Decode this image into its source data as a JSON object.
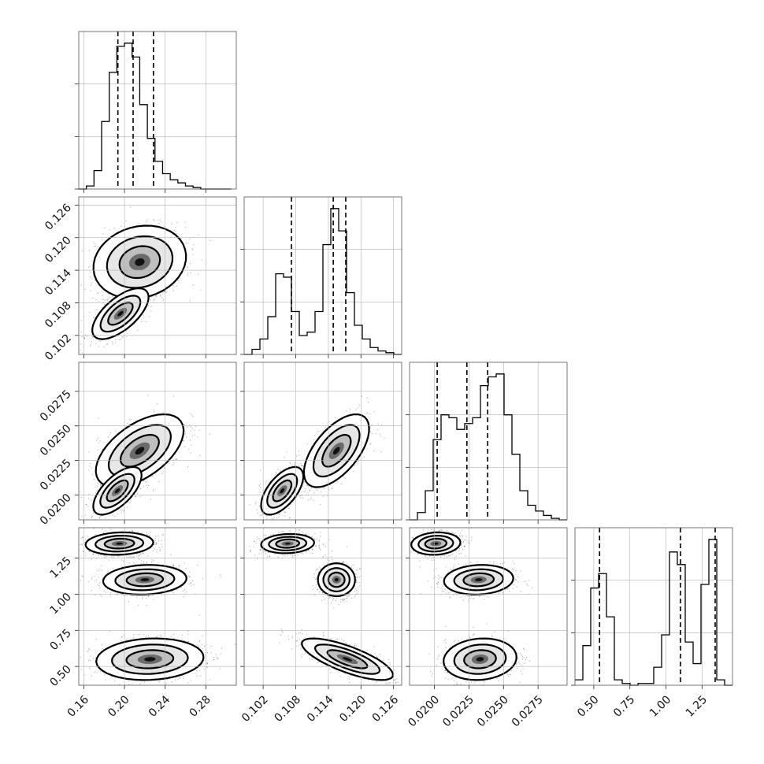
{
  "chart_data": {
    "type": "corner",
    "params": [
      {
        "key": "p0",
        "range": [
          0.155,
          0.31
        ],
        "ticks": [
          "0.16",
          "0.20",
          "0.24",
          "0.28"
        ],
        "quantiles": [
          0.1935,
          0.2085,
          0.2285
        ],
        "hist": {
          "edges_start": 0.155,
          "bin_width": 0.0075,
          "counts": [
            0,
            2,
            12,
            44,
            76,
            93,
            95,
            86,
            55,
            33,
            18,
            10,
            6,
            4,
            2,
            1,
            0,
            0,
            0,
            0
          ]
        }
      },
      {
        "key": "p1",
        "range": [
          0.0985,
          0.1275
        ],
        "ticks": [
          "0.102",
          "0.108",
          "0.114",
          "0.120",
          "0.126"
        ],
        "quantiles": [
          0.1072,
          0.1149,
          0.1172
        ],
        "hist": {
          "edges_start": 0.0985,
          "bin_width": 0.00145,
          "counts": [
            0,
            3,
            9,
            22,
            47,
            45,
            25,
            11,
            13,
            25,
            64,
            85,
            72,
            36,
            17,
            9,
            4,
            2,
            1,
            0
          ]
        }
      },
      {
        "key": "p2",
        "range": [
          0.0182,
          0.0296
        ],
        "ticks": [
          "0.0200",
          "0.0225",
          "0.0250",
          "0.0275"
        ],
        "quantiles": [
          0.0202,
          0.02235,
          0.02385
        ],
        "hist": {
          "edges_start": 0.0182,
          "bin_width": 0.00057,
          "counts": [
            0,
            5,
            20,
            55,
            72,
            70,
            62,
            66,
            70,
            92,
            98,
            100,
            72,
            45,
            20,
            10,
            6,
            3,
            1,
            0
          ]
        }
      },
      {
        "key": "p3",
        "range": [
          0.37,
          1.46
        ],
        "ticks": [
          "0.50",
          "0.75",
          "1.00",
          "1.25"
        ],
        "quantiles": [
          0.54,
          1.1,
          1.34
        ],
        "hist": {
          "edges_start": 0.37,
          "bin_width": 0.0545,
          "counts": [
            3,
            22,
            54,
            62,
            38,
            3,
            1,
            0,
            1,
            1,
            10,
            28,
            74,
            67,
            24,
            12,
            56,
            81,
            3,
            0
          ]
        }
      }
    ],
    "scatter_clusters": [
      {
        "pair": [
          0,
          1
        ],
        "blobs": [
          {
            "mx": 0.215,
            "my": 0.1155,
            "sx": 0.019,
            "sy": 0.0028,
            "rho": 0.15,
            "w": 1.0
          },
          {
            "mx": 0.196,
            "my": 0.106,
            "sx": 0.013,
            "sy": 0.0022,
            "rho": 0.65,
            "w": 0.55
          }
        ]
      },
      {
        "pair": [
          0,
          2
        ],
        "blobs": [
          {
            "mx": 0.215,
            "my": 0.0232,
            "sx": 0.018,
            "sy": 0.0011,
            "rho": 0.55,
            "w": 1.0
          },
          {
            "mx": 0.193,
            "my": 0.0203,
            "sx": 0.011,
            "sy": 0.0008,
            "rho": 0.65,
            "w": 0.6
          }
        ]
      },
      {
        "pair": [
          0,
          3
        ],
        "blobs": [
          {
            "mx": 0.195,
            "my": 1.35,
            "sx": 0.015,
            "sy": 0.035,
            "rho": 0.1,
            "w": 0.7
          },
          {
            "mx": 0.22,
            "my": 1.1,
            "sx": 0.018,
            "sy": 0.045,
            "rho": 0.1,
            "w": 0.8
          },
          {
            "mx": 0.225,
            "my": 0.55,
            "sx": 0.022,
            "sy": 0.06,
            "rho": 0.1,
            "w": 1.0
          }
        ]
      },
      {
        "pair": [
          1,
          2
        ],
        "blobs": [
          {
            "mx": 0.1155,
            "my": 0.0232,
            "sx": 0.0025,
            "sy": 0.0011,
            "rho": 0.6,
            "w": 1.0
          },
          {
            "mx": 0.1055,
            "my": 0.0203,
            "sx": 0.0018,
            "sy": 0.0008,
            "rho": 0.6,
            "w": 0.6
          }
        ]
      },
      {
        "pair": [
          1,
          3
        ],
        "blobs": [
          {
            "mx": 0.1065,
            "my": 1.35,
            "sx": 0.0022,
            "sy": 0.03,
            "rho": 0.1,
            "w": 0.7
          },
          {
            "mx": 0.1155,
            "my": 1.1,
            "sx": 0.0015,
            "sy": 0.05,
            "rho": 0.0,
            "w": 0.8
          },
          {
            "mx": 0.1175,
            "my": 0.55,
            "sx": 0.0035,
            "sy": 0.06,
            "rho": -0.75,
            "w": 1.0
          }
        ]
      },
      {
        "pair": [
          2,
          3
        ],
        "blobs": [
          {
            "mx": 0.0201,
            "my": 1.35,
            "sx": 0.0008,
            "sy": 0.035,
            "rho": 0.1,
            "w": 0.7
          },
          {
            "mx": 0.0232,
            "my": 1.1,
            "sx": 0.0011,
            "sy": 0.045,
            "rho": 0.1,
            "w": 0.8
          },
          {
            "mx": 0.0233,
            "my": 0.55,
            "sx": 0.0011,
            "sy": 0.06,
            "rho": 0.1,
            "w": 1.0
          }
        ]
      }
    ],
    "contour_levels": [
      0.39,
      0.86,
      0.99
    ],
    "grid": true
  }
}
